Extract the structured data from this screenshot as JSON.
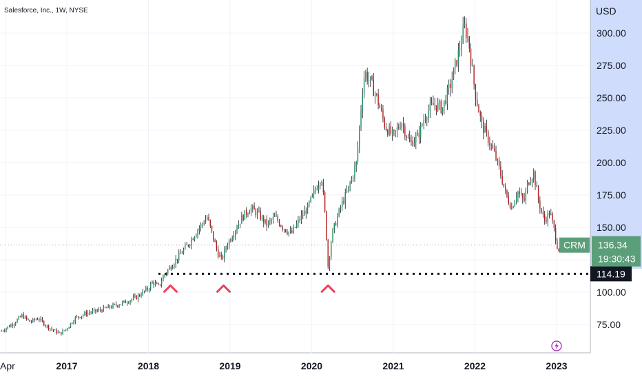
{
  "chart_data": {
    "type": "candlestick",
    "title": "Salesforce, Inc., 1W, NYSE",
    "currency": "USD",
    "symbol": "CRM",
    "last_price": "136.34",
    "countdown": "19:30:43",
    "support_level": 114.19,
    "support_label": "114.19",
    "ylim": [
      58,
      318
    ],
    "y_ticks": [
      75,
      100,
      125,
      150,
      175,
      200,
      225,
      250,
      275,
      300
    ],
    "y_tick_labels": [
      "75.00",
      "100.00",
      "",
      "150.00",
      "175.00",
      "200.00",
      "225.00",
      "250.00",
      "275.00",
      "300.00"
    ],
    "x_ticks": [
      {
        "label": "Apr",
        "t": 2016.25
      },
      {
        "label": "2017",
        "t": 2017.0
      },
      {
        "label": "2018",
        "t": 2018.0
      },
      {
        "label": "2019",
        "t": 2019.0
      },
      {
        "label": "2020",
        "t": 2020.0
      },
      {
        "label": "2021",
        "t": 2021.0
      },
      {
        "label": "2022",
        "t": 2022.0
      },
      {
        "label": "2023",
        "t": 2023.0
      }
    ],
    "xlim": [
      2016.2,
      2023.5
    ],
    "price_path": [
      [
        2016.2,
        70
      ],
      [
        2016.35,
        76
      ],
      [
        2016.45,
        82
      ],
      [
        2016.55,
        77
      ],
      [
        2016.65,
        80
      ],
      [
        2016.75,
        74
      ],
      [
        2016.85,
        70
      ],
      [
        2016.92,
        68
      ],
      [
        2017.0,
        72
      ],
      [
        2017.1,
        80
      ],
      [
        2017.25,
        84
      ],
      [
        2017.4,
        86
      ],
      [
        2017.55,
        89
      ],
      [
        2017.7,
        92
      ],
      [
        2017.85,
        96
      ],
      [
        2018.0,
        103
      ],
      [
        2018.05,
        108
      ],
      [
        2018.12,
        104
      ],
      [
        2018.2,
        114
      ],
      [
        2018.3,
        122
      ],
      [
        2018.4,
        130
      ],
      [
        2018.5,
        138
      ],
      [
        2018.6,
        148
      ],
      [
        2018.72,
        158
      ],
      [
        2018.78,
        145
      ],
      [
        2018.85,
        130
      ],
      [
        2018.9,
        125
      ],
      [
        2018.95,
        135
      ],
      [
        2019.05,
        147
      ],
      [
        2019.15,
        158
      ],
      [
        2019.25,
        165
      ],
      [
        2019.35,
        160
      ],
      [
        2019.45,
        152
      ],
      [
        2019.55,
        158
      ],
      [
        2019.65,
        150
      ],
      [
        2019.75,
        145
      ],
      [
        2019.85,
        156
      ],
      [
        2019.95,
        165
      ],
      [
        2020.05,
        180
      ],
      [
        2020.12,
        190
      ],
      [
        2020.17,
        155
      ],
      [
        2020.2,
        120
      ],
      [
        2020.25,
        145
      ],
      [
        2020.35,
        165
      ],
      [
        2020.45,
        180
      ],
      [
        2020.55,
        200
      ],
      [
        2020.62,
        255
      ],
      [
        2020.65,
        270
      ],
      [
        2020.72,
        262
      ],
      [
        2020.8,
        250
      ],
      [
        2020.9,
        228
      ],
      [
        2021.0,
        220
      ],
      [
        2021.1,
        232
      ],
      [
        2021.2,
        215
      ],
      [
        2021.3,
        220
      ],
      [
        2021.4,
        238
      ],
      [
        2021.5,
        245
      ],
      [
        2021.6,
        242
      ],
      [
        2021.7,
        260
      ],
      [
        2021.8,
        285
      ],
      [
        2021.87,
        305
      ],
      [
        2021.92,
        295
      ],
      [
        2022.0,
        255
      ],
      [
        2022.08,
        230
      ],
      [
        2022.15,
        220
      ],
      [
        2022.25,
        205
      ],
      [
        2022.32,
        190
      ],
      [
        2022.38,
        175
      ],
      [
        2022.45,
        165
      ],
      [
        2022.52,
        178
      ],
      [
        2022.6,
        170
      ],
      [
        2022.65,
        185
      ],
      [
        2022.72,
        192
      ],
      [
        2022.78,
        170
      ],
      [
        2022.85,
        155
      ],
      [
        2022.92,
        162
      ],
      [
        2022.98,
        145
      ],
      [
        2023.02,
        132
      ],
      [
        2023.04,
        136
      ]
    ],
    "markers": [
      2018.27,
      2018.92,
      2020.2
    ]
  }
}
